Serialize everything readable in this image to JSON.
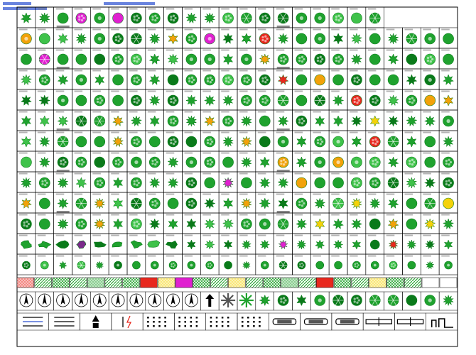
{
  "sheet": {
    "colors": {
      "line": "#000000",
      "background": "#ffffff",
      "foliage_dark": "#0a7a1a",
      "foliage": "#1fa22e",
      "foliage_light": "#3fc24a",
      "accent_orange": "#f2a20a",
      "accent_magenta": "#e020d0",
      "accent_red": "#e8281e",
      "accent_purple": "#7a2a8a",
      "accent_yellow": "#f4d20a",
      "label_gray": "#777777"
    },
    "tree_rows": [
      {
        "count": 20,
        "pattern": "dense"
      },
      {
        "count": 24,
        "pattern": "mixed"
      },
      {
        "count": 24,
        "pattern": "dense"
      },
      {
        "count": 24,
        "pattern": "mixed"
      },
      {
        "count": 24,
        "pattern": "dense"
      },
      {
        "count": 24,
        "pattern": "spiky"
      },
      {
        "count": 24,
        "pattern": "dense"
      },
      {
        "count": 24,
        "pattern": "mixed"
      },
      {
        "count": 24,
        "pattern": "dense"
      },
      {
        "count": 24,
        "pattern": "spiky"
      },
      {
        "count": 24,
        "pattern": "spiky"
      },
      {
        "count": 24,
        "pattern": "shrubs"
      },
      {
        "count": 24,
        "pattern": "small"
      }
    ],
    "hatch_swatches": [
      {
        "color": "#e8281e",
        "pattern": "dots"
      },
      {
        "color": "#2ea838",
        "pattern": "diag"
      },
      {
        "color": "#2ea838",
        "pattern": "cross"
      },
      {
        "color": "#2ea838",
        "pattern": "diag"
      },
      {
        "color": "#2ea838",
        "pattern": "dots"
      },
      {
        "color": "#2ea838",
        "pattern": "diag"
      },
      {
        "color": "#2ea838",
        "pattern": "cross"
      },
      {
        "color": "#e8281e",
        "pattern": "solid"
      },
      {
        "color": "#f4d20a",
        "pattern": "dots"
      },
      {
        "color": "#e020d0",
        "pattern": "solid"
      },
      {
        "color": "#2ea838",
        "pattern": "cross"
      },
      {
        "color": "#2ea838",
        "pattern": "diag"
      },
      {
        "color": "#f4d20a",
        "pattern": "dots"
      },
      {
        "color": "#2ea838",
        "pattern": "diag"
      },
      {
        "color": "#2ea838",
        "pattern": "cross"
      },
      {
        "color": "#2ea838",
        "pattern": "dots"
      },
      {
        "color": "#2ea838",
        "pattern": "diag"
      },
      {
        "color": "#e8281e",
        "pattern": "solid"
      },
      {
        "color": "#2ea838",
        "pattern": "cross"
      },
      {
        "color": "#2ea838",
        "pattern": "diag"
      },
      {
        "color": "#f4d20a",
        "pattern": "dots"
      },
      {
        "color": "#2ea838",
        "pattern": "cross"
      },
      {
        "color": "#2ea838",
        "pattern": "diag"
      }
    ],
    "bottom_icons": [
      "compass-icon",
      "compass-icon",
      "compass-icon",
      "compass-icon",
      "compass-icon",
      "compass-icon",
      "compass-icon",
      "compass-icon",
      "compass-icon",
      "compass-icon",
      "arrow-up-icon",
      "palm-icon",
      "palm-icon",
      "tree-symbol",
      "tree-symbol",
      "tree-symbol",
      "tree-symbol",
      "tree-symbol",
      "tree-symbol",
      "tree-symbol",
      "tree-symbol",
      "tree-symbol",
      "tree-symbol",
      "tree-symbol"
    ],
    "line_symbols": [
      "legend-lines-icon",
      "hedge-lines-icon",
      "north-arrow-icon",
      "marker-icon",
      "dot-pattern-icon",
      "dot-pattern-icon",
      "dot-pattern-icon",
      "dot-pattern-icon",
      "vehicle-icon",
      "vehicle-icon",
      "vehicle-icon",
      "scale-bar-icon",
      "scale-bar-icon",
      "building-icon"
    ]
  }
}
